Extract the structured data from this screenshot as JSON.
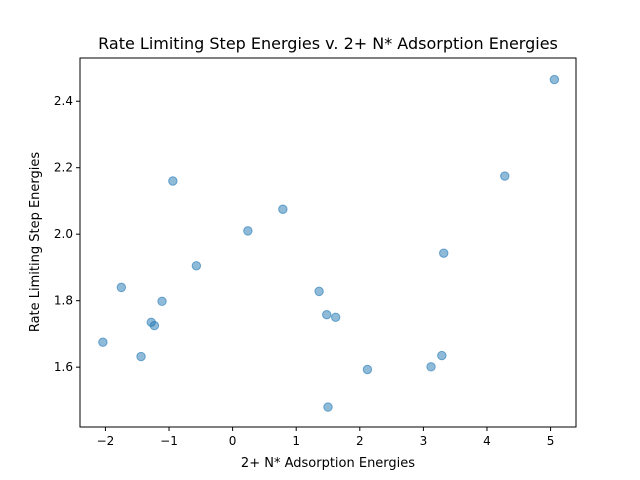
{
  "chart_data": {
    "type": "scatter",
    "title": "Rate Limiting Step Energies v. 2+ N* Adsorption Energies",
    "xlabel": "2+ N* Adsorption Energies",
    "ylabel": "Rate Limiting Step Energies",
    "xlim": [
      -2.4,
      5.4
    ],
    "ylim": [
      1.42,
      2.53
    ],
    "xticks": [
      -2,
      -1,
      0,
      1,
      2,
      3,
      4,
      5
    ],
    "yticks": [
      1.6,
      1.8,
      2.0,
      2.2,
      2.4
    ],
    "xtick_labels": [
      "−2",
      "−1",
      "0",
      "1",
      "2",
      "3",
      "4",
      "5"
    ],
    "ytick_labels": [
      "1.6",
      "1.8",
      "2.0",
      "2.2",
      "2.4"
    ],
    "grid": false,
    "marker_color": "#1f77b4",
    "marker_alpha": 0.5,
    "points": [
      {
        "x": -2.04,
        "y": 1.675
      },
      {
        "x": -1.75,
        "y": 1.84
      },
      {
        "x": -1.44,
        "y": 1.632
      },
      {
        "x": -1.28,
        "y": 1.735
      },
      {
        "x": -1.23,
        "y": 1.725
      },
      {
        "x": -1.11,
        "y": 1.798
      },
      {
        "x": -0.94,
        "y": 2.16
      },
      {
        "x": -0.57,
        "y": 1.905
      },
      {
        "x": 0.24,
        "y": 2.01
      },
      {
        "x": 0.79,
        "y": 2.075
      },
      {
        "x": 1.36,
        "y": 1.828
      },
      {
        "x": 1.48,
        "y": 1.758
      },
      {
        "x": 1.62,
        "y": 1.75
      },
      {
        "x": 1.5,
        "y": 1.48
      },
      {
        "x": 2.12,
        "y": 1.593
      },
      {
        "x": 3.12,
        "y": 1.601
      },
      {
        "x": 3.29,
        "y": 1.635
      },
      {
        "x": 3.32,
        "y": 1.943
      },
      {
        "x": 4.28,
        "y": 2.175
      },
      {
        "x": 5.06,
        "y": 2.465
      }
    ]
  }
}
